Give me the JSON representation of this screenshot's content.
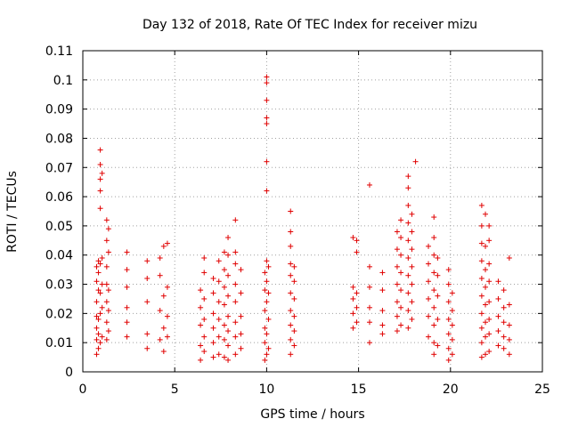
{
  "chart_data": {
    "type": "scatter",
    "title": "Day 132 of 2018, Rate Of TEC Index for receiver mizu",
    "xlabel": "GPS time / hours",
    "ylabel": "ROTI / TECUs",
    "xlim": [
      0,
      25
    ],
    "ylim": [
      0,
      0.11
    ],
    "xticks": [
      0,
      5,
      10,
      15,
      20,
      25
    ],
    "yticks": [
      0,
      0.01,
      0.02,
      0.03,
      0.04,
      0.05,
      0.06,
      0.07,
      0.08,
      0.09,
      0.1,
      0.11
    ],
    "xtick_labels": [
      "0",
      "5",
      "10",
      "15",
      "20",
      "25"
    ],
    "ytick_labels": [
      "0",
      "0.01",
      "0.02",
      "0.03",
      "0.04",
      "0.05",
      "0.06",
      "0.07",
      "0.08",
      "0.09",
      "0.1",
      "0.11"
    ],
    "grid": true,
    "marker": "+",
    "color": "#e00000",
    "series": [
      {
        "name": "ROTI",
        "points": [
          [
            0.75,
            0.006
          ],
          [
            0.75,
            0.011
          ],
          [
            0.75,
            0.015
          ],
          [
            0.75,
            0.019
          ],
          [
            0.75,
            0.024
          ],
          [
            0.75,
            0.031
          ],
          [
            0.75,
            0.036
          ],
          [
            0.85,
            0.008
          ],
          [
            0.85,
            0.013
          ],
          [
            0.85,
            0.018
          ],
          [
            0.85,
            0.028
          ],
          [
            0.85,
            0.034
          ],
          [
            0.85,
            0.038
          ],
          [
            0.95,
            0.01
          ],
          [
            0.95,
            0.02
          ],
          [
            0.95,
            0.027
          ],
          [
            0.95,
            0.037
          ],
          [
            0.95,
            0.076
          ],
          [
            0.95,
            0.071
          ],
          [
            0.95,
            0.066
          ],
          [
            0.95,
            0.062
          ],
          [
            0.95,
            0.056
          ],
          [
            1.05,
            0.012
          ],
          [
            1.05,
            0.022
          ],
          [
            1.05,
            0.03
          ],
          [
            1.05,
            0.039
          ],
          [
            1.05,
            0.068
          ],
          [
            1.3,
            0.011
          ],
          [
            1.3,
            0.017
          ],
          [
            1.3,
            0.024
          ],
          [
            1.3,
            0.03
          ],
          [
            1.3,
            0.036
          ],
          [
            1.3,
            0.045
          ],
          [
            1.3,
            0.052
          ],
          [
            1.4,
            0.014
          ],
          [
            1.4,
            0.021
          ],
          [
            1.4,
            0.028
          ],
          [
            1.4,
            0.041
          ],
          [
            1.4,
            0.049
          ],
          [
            2.4,
            0.012
          ],
          [
            2.4,
            0.017
          ],
          [
            2.4,
            0.022
          ],
          [
            2.4,
            0.029
          ],
          [
            2.4,
            0.035
          ],
          [
            2.4,
            0.041
          ],
          [
            3.5,
            0.008
          ],
          [
            3.5,
            0.013
          ],
          [
            3.5,
            0.024
          ],
          [
            3.5,
            0.032
          ],
          [
            3.5,
            0.038
          ],
          [
            4.2,
            0.011
          ],
          [
            4.2,
            0.021
          ],
          [
            4.2,
            0.033
          ],
          [
            4.2,
            0.039
          ],
          [
            4.4,
            0.007
          ],
          [
            4.4,
            0.015
          ],
          [
            4.4,
            0.026
          ],
          [
            4.4,
            0.043
          ],
          [
            4.6,
            0.012
          ],
          [
            4.6,
            0.019
          ],
          [
            4.6,
            0.029
          ],
          [
            4.6,
            0.044
          ],
          [
            6.4,
            0.004
          ],
          [
            6.4,
            0.009
          ],
          [
            6.4,
            0.016
          ],
          [
            6.4,
            0.022
          ],
          [
            6.4,
            0.028
          ],
          [
            6.6,
            0.007
          ],
          [
            6.6,
            0.012
          ],
          [
            6.6,
            0.018
          ],
          [
            6.6,
            0.025
          ],
          [
            6.6,
            0.034
          ],
          [
            6.6,
            0.039
          ],
          [
            7.1,
            0.005
          ],
          [
            7.1,
            0.01
          ],
          [
            7.1,
            0.015
          ],
          [
            7.1,
            0.02
          ],
          [
            7.1,
            0.027
          ],
          [
            7.1,
            0.032
          ],
          [
            7.4,
            0.006
          ],
          [
            7.4,
            0.012
          ],
          [
            7.4,
            0.018
          ],
          [
            7.4,
            0.024
          ],
          [
            7.4,
            0.031
          ],
          [
            7.4,
            0.038
          ],
          [
            7.7,
            0.005
          ],
          [
            7.7,
            0.011
          ],
          [
            7.7,
            0.016
          ],
          [
            7.7,
            0.023
          ],
          [
            7.7,
            0.029
          ],
          [
            7.7,
            0.035
          ],
          [
            7.7,
            0.041
          ],
          [
            7.9,
            0.004
          ],
          [
            7.9,
            0.009
          ],
          [
            7.9,
            0.014
          ],
          [
            7.9,
            0.019
          ],
          [
            7.9,
            0.026
          ],
          [
            7.9,
            0.033
          ],
          [
            7.9,
            0.04
          ],
          [
            7.9,
            0.046
          ],
          [
            8.3,
            0.006
          ],
          [
            8.3,
            0.012
          ],
          [
            8.3,
            0.017
          ],
          [
            8.3,
            0.024
          ],
          [
            8.3,
            0.03
          ],
          [
            8.3,
            0.037
          ],
          [
            8.3,
            0.041
          ],
          [
            8.3,
            0.052
          ],
          [
            8.6,
            0.008
          ],
          [
            8.6,
            0.013
          ],
          [
            8.6,
            0.019
          ],
          [
            8.6,
            0.027
          ],
          [
            8.6,
            0.035
          ],
          [
            9.9,
            0.004
          ],
          [
            9.9,
            0.01
          ],
          [
            9.9,
            0.015
          ],
          [
            9.9,
            0.021
          ],
          [
            9.9,
            0.028
          ],
          [
            9.9,
            0.034
          ],
          [
            10.0,
            0.006
          ],
          [
            10.0,
            0.013
          ],
          [
            10.0,
            0.024
          ],
          [
            10.0,
            0.031
          ],
          [
            10.0,
            0.038
          ],
          [
            10.0,
            0.062
          ],
          [
            10.0,
            0.072
          ],
          [
            10.0,
            0.085
          ],
          [
            10.0,
            0.087
          ],
          [
            10.0,
            0.093
          ],
          [
            10.0,
            0.101
          ],
          [
            10.0,
            0.099
          ],
          [
            10.1,
            0.008
          ],
          [
            10.1,
            0.018
          ],
          [
            10.1,
            0.027
          ],
          [
            10.1,
            0.036
          ],
          [
            11.3,
            0.006
          ],
          [
            11.3,
            0.011
          ],
          [
            11.3,
            0.016
          ],
          [
            11.3,
            0.021
          ],
          [
            11.3,
            0.027
          ],
          [
            11.3,
            0.033
          ],
          [
            11.3,
            0.037
          ],
          [
            11.3,
            0.043
          ],
          [
            11.3,
            0.048
          ],
          [
            11.3,
            0.055
          ],
          [
            11.5,
            0.009
          ],
          [
            11.5,
            0.014
          ],
          [
            11.5,
            0.019
          ],
          [
            11.5,
            0.025
          ],
          [
            11.5,
            0.031
          ],
          [
            11.5,
            0.036
          ],
          [
            14.7,
            0.015
          ],
          [
            14.7,
            0.02
          ],
          [
            14.7,
            0.025
          ],
          [
            14.7,
            0.029
          ],
          [
            14.7,
            0.046
          ],
          [
            14.9,
            0.017
          ],
          [
            14.9,
            0.022
          ],
          [
            14.9,
            0.027
          ],
          [
            14.9,
            0.041
          ],
          [
            14.9,
            0.045
          ],
          [
            15.6,
            0.01
          ],
          [
            15.6,
            0.017
          ],
          [
            15.6,
            0.022
          ],
          [
            15.6,
            0.029
          ],
          [
            15.6,
            0.036
          ],
          [
            15.6,
            0.064
          ],
          [
            16.3,
            0.013
          ],
          [
            16.3,
            0.016
          ],
          [
            16.3,
            0.021
          ],
          [
            16.3,
            0.028
          ],
          [
            16.3,
            0.034
          ],
          [
            17.1,
            0.014
          ],
          [
            17.1,
            0.019
          ],
          [
            17.1,
            0.024
          ],
          [
            17.1,
            0.03
          ],
          [
            17.1,
            0.036
          ],
          [
            17.1,
            0.042
          ],
          [
            17.1,
            0.048
          ],
          [
            17.3,
            0.016
          ],
          [
            17.3,
            0.022
          ],
          [
            17.3,
            0.028
          ],
          [
            17.3,
            0.034
          ],
          [
            17.3,
            0.04
          ],
          [
            17.3,
            0.046
          ],
          [
            17.3,
            0.052
          ],
          [
            17.7,
            0.015
          ],
          [
            17.7,
            0.021
          ],
          [
            17.7,
            0.027
          ],
          [
            17.7,
            0.033
          ],
          [
            17.7,
            0.039
          ],
          [
            17.7,
            0.045
          ],
          [
            17.7,
            0.051
          ],
          [
            17.7,
            0.057
          ],
          [
            17.7,
            0.063
          ],
          [
            17.7,
            0.067
          ],
          [
            17.9,
            0.018
          ],
          [
            17.9,
            0.024
          ],
          [
            17.9,
            0.03
          ],
          [
            17.9,
            0.036
          ],
          [
            17.9,
            0.042
          ],
          [
            17.9,
            0.048
          ],
          [
            17.9,
            0.054
          ],
          [
            18.1,
            0.072
          ],
          [
            18.8,
            0.012
          ],
          [
            18.8,
            0.019
          ],
          [
            18.8,
            0.025
          ],
          [
            18.8,
            0.031
          ],
          [
            18.8,
            0.037
          ],
          [
            18.8,
            0.043
          ],
          [
            19.1,
            0.006
          ],
          [
            19.1,
            0.01
          ],
          [
            19.1,
            0.016
          ],
          [
            19.1,
            0.022
          ],
          [
            19.1,
            0.028
          ],
          [
            19.1,
            0.034
          ],
          [
            19.1,
            0.04
          ],
          [
            19.1,
            0.046
          ],
          [
            19.1,
            0.053
          ],
          [
            19.3,
            0.009
          ],
          [
            19.3,
            0.018
          ],
          [
            19.3,
            0.026
          ],
          [
            19.3,
            0.033
          ],
          [
            19.3,
            0.039
          ],
          [
            19.9,
            0.004
          ],
          [
            19.9,
            0.008
          ],
          [
            19.9,
            0.013
          ],
          [
            19.9,
            0.018
          ],
          [
            19.9,
            0.024
          ],
          [
            19.9,
            0.03
          ],
          [
            19.9,
            0.035
          ],
          [
            20.1,
            0.006
          ],
          [
            20.1,
            0.011
          ],
          [
            20.1,
            0.016
          ],
          [
            20.1,
            0.021
          ],
          [
            20.1,
            0.027
          ],
          [
            21.7,
            0.005
          ],
          [
            21.7,
            0.01
          ],
          [
            21.7,
            0.015
          ],
          [
            21.7,
            0.02
          ],
          [
            21.7,
            0.026
          ],
          [
            21.7,
            0.032
          ],
          [
            21.7,
            0.038
          ],
          [
            21.7,
            0.044
          ],
          [
            21.7,
            0.05
          ],
          [
            21.7,
            0.057
          ],
          [
            21.9,
            0.006
          ],
          [
            21.9,
            0.012
          ],
          [
            21.9,
            0.017
          ],
          [
            21.9,
            0.023
          ],
          [
            21.9,
            0.029
          ],
          [
            21.9,
            0.035
          ],
          [
            21.9,
            0.043
          ],
          [
            21.9,
            0.054
          ],
          [
            22.1,
            0.007
          ],
          [
            22.1,
            0.013
          ],
          [
            22.1,
            0.018
          ],
          [
            22.1,
            0.024
          ],
          [
            22.1,
            0.031
          ],
          [
            22.1,
            0.037
          ],
          [
            22.1,
            0.045
          ],
          [
            22.1,
            0.05
          ],
          [
            22.6,
            0.009
          ],
          [
            22.6,
            0.014
          ],
          [
            22.6,
            0.019
          ],
          [
            22.6,
            0.025
          ],
          [
            22.6,
            0.031
          ],
          [
            22.9,
            0.008
          ],
          [
            22.9,
            0.012
          ],
          [
            22.9,
            0.017
          ],
          [
            22.9,
            0.022
          ],
          [
            22.9,
            0.028
          ],
          [
            23.2,
            0.006
          ],
          [
            23.2,
            0.011
          ],
          [
            23.2,
            0.016
          ],
          [
            23.2,
            0.023
          ],
          [
            23.2,
            0.039
          ]
        ]
      }
    ]
  }
}
